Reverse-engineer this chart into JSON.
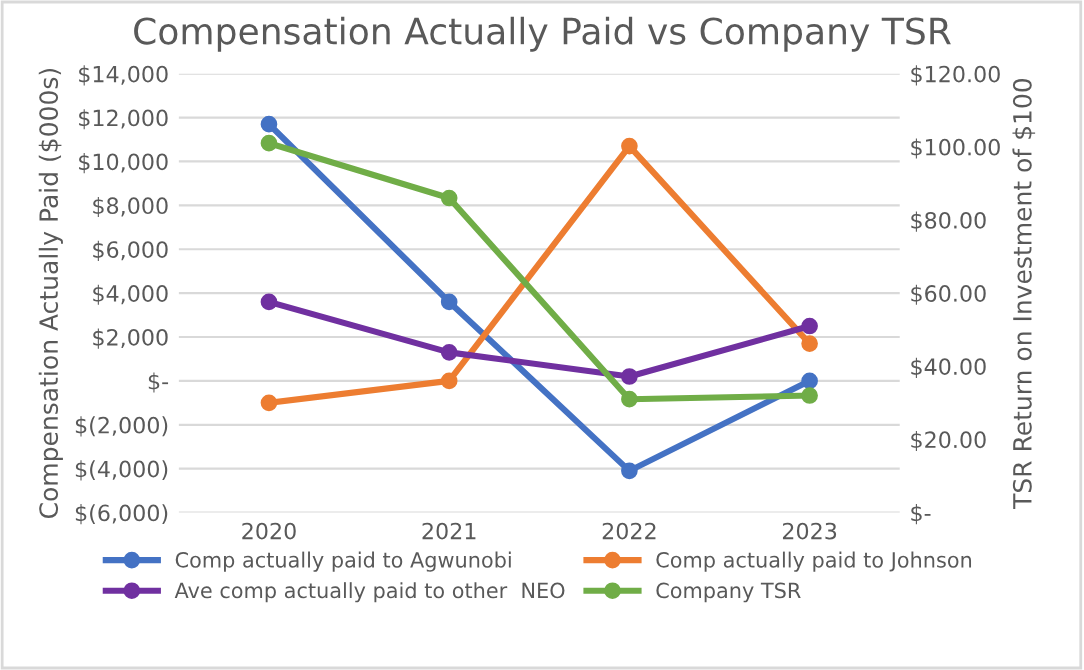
{
  "chart_data": {
    "type": "line",
    "title": "Compensation Actually Paid vs Company TSR",
    "ylabel": "Compensation Actually Paid ($000s)",
    "y2label": "TSR Return on Investment of $100",
    "categories": [
      "2020",
      "2021",
      "2022",
      "2023"
    ],
    "series": [
      {
        "name": "Comp actually paid to Agwunobi",
        "color": "#4472c4",
        "values": [
          11700,
          3600,
          -4100,
          0
        ]
      },
      {
        "name": "Comp actually paid to Johnson",
        "color": "#ed7d31",
        "values": [
          -1000,
          0,
          10700,
          1700
        ]
      },
      {
        "name": "Ave comp actually paid to other  NEO",
        "color": "#7030a0",
        "values": [
          3600,
          1300,
          200,
          2500
        ]
      },
      {
        "name": "Company TSR",
        "color": "#70ad47",
        "values": [
          101,
          86,
          31,
          32
        ],
        "axis": "y2"
      }
    ],
    "ylim": [
      -6000,
      14000
    ],
    "yticks": [
      {
        "value": -6000,
        "label": "$(6,000)"
      },
      {
        "value": -4000,
        "label": "$(4,000)"
      },
      {
        "value": -2000,
        "label": "$(2,000)"
      },
      {
        "value": 0,
        "label": "$-"
      },
      {
        "value": 2000,
        "label": "$2,000"
      },
      {
        "value": 4000,
        "label": "$4,000"
      },
      {
        "value": 6000,
        "label": "$6,000"
      },
      {
        "value": 8000,
        "label": "$8,000"
      },
      {
        "value": 10000,
        "label": "$10,000"
      },
      {
        "value": 12000,
        "label": "$12,000"
      },
      {
        "value": 14000,
        "label": "$14,000"
      }
    ],
    "y2lim": [
      0,
      120
    ],
    "y2ticks": [
      {
        "value": 0,
        "label": "$-"
      },
      {
        "value": 20,
        "label": "$20.00"
      },
      {
        "value": 40,
        "label": "$40.00"
      },
      {
        "value": 60,
        "label": "$60.00"
      },
      {
        "value": 80,
        "label": "$80.00"
      },
      {
        "value": 100,
        "label": "$100.00"
      },
      {
        "value": 120,
        "label": "$120.00"
      }
    ],
    "grid": "y",
    "legend": "bottom",
    "marker": "circle",
    "line_style": "solid"
  }
}
